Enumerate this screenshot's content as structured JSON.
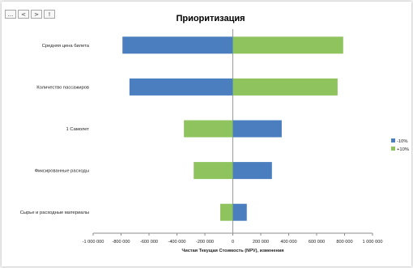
{
  "toolbar": {
    "buttons": [
      {
        "label": "...",
        "name": "more-button"
      },
      {
        "label": "<",
        "name": "prev-button"
      },
      {
        "label": ">",
        "name": "next-button"
      },
      {
        "label": "!",
        "name": "alert-button"
      }
    ]
  },
  "chart_data": {
    "type": "bar",
    "orientation": "horizontal",
    "title": "Приоритизация",
    "xlabel": "Чистая Текущая Стоимость (NPV), изменения",
    "ylabel": "",
    "xlim": [
      -1000000,
      1000000
    ],
    "xticks": [
      -1000000,
      -800000,
      -600000,
      -400000,
      -200000,
      0,
      200000,
      400000,
      600000,
      800000,
      1000000
    ],
    "xtick_labels": [
      "-1 000 000",
      "-800 000",
      "-600 000",
      "-400 000",
      "-200 000",
      "0",
      "200 000",
      "400 000",
      "600 000",
      "800 000",
      "1 000 000"
    ],
    "categories": [
      "Средняя цена билета",
      "Количество пассажиров",
      "1 Самолет",
      "Фиксированные расходы",
      "Сырье и расходные материалы"
    ],
    "series": [
      {
        "name": "-10%",
        "color": "#4a7ebf",
        "values": [
          -790000,
          -740000,
          350000,
          280000,
          100000
        ]
      },
      {
        "name": "+10%",
        "color": "#8fc35d",
        "values": [
          790000,
          750000,
          -350000,
          -280000,
          -90000
        ]
      }
    ],
    "grid": false,
    "legend_position": "right"
  }
}
